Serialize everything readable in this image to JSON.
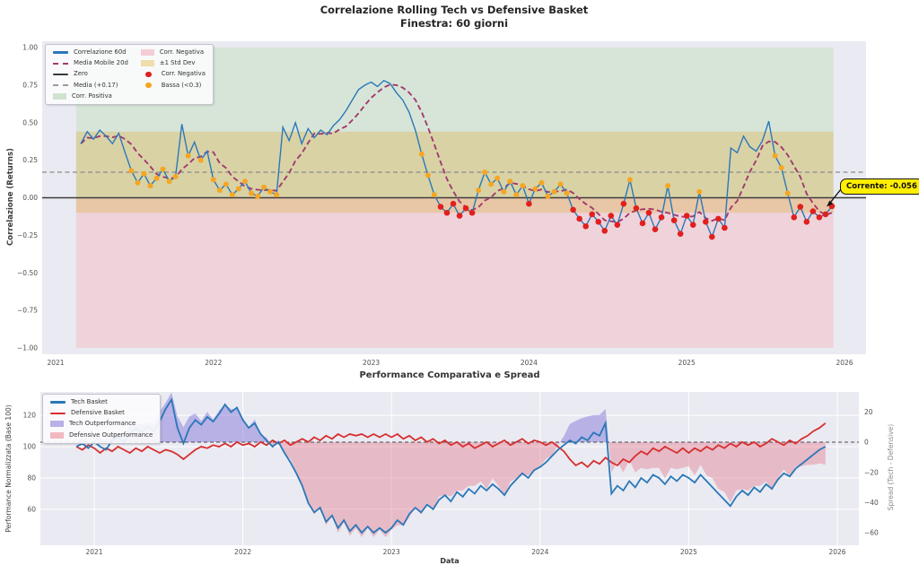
{
  "figure": {
    "bg": "#ffffff",
    "plot_bg": "#eaeaf2"
  },
  "annotation": {
    "label": "Corrente: -0.056",
    "bg": "#ffee00"
  },
  "chart_data": [
    {
      "type": "line",
      "title": "Correlazione Rolling Tech vs Defensive Basket",
      "subtitle": "Finestra: 60 giorni",
      "ylabel": "Correlazione (Returns)",
      "xlabel": "",
      "xtick_labels": [
        "2021",
        "2022",
        "2023",
        "2024",
        "2025",
        "2026"
      ],
      "xtick_values": [
        2021,
        2022,
        2023,
        2024,
        2025,
        2026
      ],
      "ytick_labels": [
        "1.00",
        "0.75",
        "0.50",
        "0.25",
        "0.00",
        "−0.25",
        "−0.50",
        "−0.75",
        "−1.00"
      ],
      "ytick_values": [
        1.0,
        0.75,
        0.5,
        0.25,
        0.0,
        -0.25,
        -0.5,
        -0.75,
        -1.0
      ],
      "ylim": [
        -1.04,
        1.04
      ],
      "grid": false,
      "legend_position": "upper-left",
      "zero_line": 0.0,
      "mean_line": 0.17,
      "std_band": [
        -0.1,
        0.44
      ],
      "low_threshold": 0.3,
      "band_x_range": [
        2021.13,
        2025.93
      ],
      "ma_window": 6,
      "series": {
        "t0": 2021.16,
        "dt": 0.04,
        "correlation_60d": [
          0.36,
          0.44,
          0.39,
          0.45,
          0.41,
          0.36,
          0.43,
          0.3,
          0.18,
          0.1,
          0.16,
          0.08,
          0.13,
          0.19,
          0.11,
          0.14,
          0.49,
          0.28,
          0.37,
          0.25,
          0.31,
          0.12,
          0.05,
          0.09,
          0.02,
          0.06,
          0.11,
          0.03,
          0.01,
          0.07,
          0.04,
          0.02,
          0.47,
          0.38,
          0.5,
          0.36,
          0.46,
          0.4,
          0.45,
          0.42,
          0.48,
          0.52,
          0.58,
          0.65,
          0.72,
          0.75,
          0.77,
          0.74,
          0.78,
          0.76,
          0.7,
          0.65,
          0.57,
          0.45,
          0.29,
          0.15,
          0.02,
          -0.06,
          -0.1,
          -0.04,
          -0.12,
          -0.07,
          -0.1,
          0.05,
          0.17,
          0.09,
          0.13,
          0.04,
          0.11,
          0.02,
          0.08,
          -0.04,
          0.06,
          0.1,
          0.01,
          0.04,
          0.09,
          0.03,
          -0.08,
          -0.14,
          -0.19,
          -0.11,
          -0.16,
          -0.22,
          -0.12,
          -0.18,
          -0.04,
          0.12,
          -0.07,
          -0.17,
          -0.1,
          -0.21,
          -0.13,
          0.08,
          -0.15,
          -0.24,
          -0.12,
          -0.18,
          0.04,
          -0.16,
          -0.26,
          -0.14,
          -0.2,
          0.33,
          0.3,
          0.41,
          0.34,
          0.31,
          0.38,
          0.51,
          0.28,
          0.2,
          0.03,
          -0.13,
          -0.06,
          -0.16,
          -0.09,
          -0.13,
          -0.11,
          -0.056
        ]
      },
      "current_value": -0.056,
      "legend_col1": [
        {
          "label": "Correlazione 60d",
          "swatch": "line",
          "color": "#2a78b8"
        },
        {
          "label": "Media Mobile 20d",
          "swatch": "dash",
          "color": "#a23b6e"
        },
        {
          "label": "Zero",
          "swatch": "line",
          "color": "#3a3a3a"
        },
        {
          "label": "Media (+0.17)",
          "swatch": "dash",
          "color": "#9a9a9a"
        },
        {
          "label": "Corr. Positiva",
          "swatch": "patch",
          "color": "#cfe3cf"
        }
      ],
      "legend_col2": [
        {
          "label": "Corr. Negativa",
          "swatch": "patch",
          "color": "#f4ccd6"
        },
        {
          "label": "±1 Std Dev",
          "swatch": "patch",
          "color": "#efddab"
        },
        {
          "label": "Corr. Negativa",
          "swatch": "dot",
          "color": "#e1201e"
        },
        {
          "label": "Bassa (<0.3)",
          "swatch": "dot",
          "color": "#f5a623"
        }
      ],
      "colors": {
        "line": "#2a78b8",
        "ma": "#a23b6e",
        "zero": "#3c3c3c",
        "mean": "#8a8a8a",
        "band_pos": "#d7e5d8",
        "band_neg": "#efd3da",
        "band_std": "rgba(222,178,82,0.38)",
        "dot_neg": "#e1201e",
        "dot_low": "#f5a623"
      }
    },
    {
      "type": "line",
      "title": "Performance Comparativa e Spread",
      "xlabel": "Data",
      "ylabel_left": "Performance Normalizzata (Base 100)",
      "ylabel_right": "Spread (Tech - Defensive)",
      "xtick_labels": [
        "2021",
        "2022",
        "2023",
        "2024",
        "2025",
        "2026"
      ],
      "xtick_values": [
        2021,
        2022,
        2023,
        2024,
        2025,
        2026
      ],
      "ytick_left_labels": [
        "120",
        "100",
        "80",
        "60"
      ],
      "ytick_left_values": [
        120,
        100,
        80,
        60
      ],
      "ytick_right_labels": [
        "20",
        "0",
        "−20",
        "−40",
        "−60"
      ],
      "ytick_right_values": [
        20,
        0,
        -20,
        -40,
        -60
      ],
      "grid": true,
      "spread_zero_line": 0,
      "series": {
        "t0": 2020.88,
        "dt": 0.04,
        "tech_basket": [
          100,
          102,
          99,
          103,
          100,
          98,
          104,
          106,
          103,
          108,
          112,
          109,
          113,
          110,
          116,
          124,
          130,
          112,
          102,
          112,
          117,
          114,
          119,
          116,
          121,
          127,
          122,
          125,
          117,
          112,
          115,
          108,
          104,
          100,
          103,
          96,
          90,
          83,
          75,
          64,
          58,
          61,
          52,
          56,
          48,
          53,
          46,
          50,
          45,
          49,
          45,
          48,
          45,
          48,
          53,
          50,
          57,
          61,
          58,
          63,
          60,
          66,
          69,
          65,
          71,
          68,
          73,
          70,
          75,
          72,
          76,
          73,
          69,
          75,
          79,
          83,
          80,
          85,
          87,
          90,
          94,
          98,
          101,
          104,
          102,
          106,
          104,
          109,
          107,
          115,
          70,
          75,
          72,
          78,
          74,
          80,
          77,
          82,
          80,
          76,
          81,
          78,
          82,
          80,
          77,
          82,
          78,
          74,
          70,
          66,
          62,
          68,
          72,
          69,
          74,
          71,
          76,
          73,
          79,
          83,
          81,
          86,
          89,
          92,
          95,
          98,
          100
        ],
        "defensive_basket": [
          100,
          98,
          101,
          99,
          96,
          99,
          97,
          100,
          98,
          96,
          99,
          97,
          100,
          98,
          96,
          98,
          97,
          95,
          92,
          95,
          98,
          100,
          99,
          101,
          100,
          102,
          100,
          103,
          101,
          102,
          100,
          103,
          101,
          104,
          102,
          104,
          101,
          103,
          105,
          103,
          106,
          104,
          107,
          105,
          108,
          106,
          108,
          107,
          108,
          106,
          108,
          106,
          108,
          106,
          108,
          105,
          107,
          104,
          106,
          103,
          105,
          102,
          104,
          101,
          103,
          100,
          102,
          99,
          101,
          103,
          100,
          102,
          104,
          101,
          103,
          105,
          102,
          104,
          103,
          101,
          103,
          100,
          97,
          92,
          88,
          90,
          87,
          91,
          89,
          93,
          90,
          88,
          92,
          90,
          94,
          97,
          95,
          99,
          97,
          100,
          98,
          96,
          99,
          96,
          99,
          97,
          100,
          98,
          101,
          99,
          102,
          100,
          103,
          101,
          103,
          100,
          102,
          105,
          103,
          101,
          104,
          102,
          105,
          107,
          110,
          112,
          115
        ]
      },
      "legend": [
        {
          "label": "Tech Basket",
          "swatch": "line",
          "color": "#2a78b8"
        },
        {
          "label": "Defensive Basket",
          "swatch": "line",
          "color": "#d62f2f"
        },
        {
          "label": "Tech Outperformance",
          "swatch": "patch",
          "color": "#b9b0e8"
        },
        {
          "label": "Defensive Outperformance",
          "swatch": "patch",
          "color": "#f2b8c2"
        }
      ],
      "colors": {
        "tech": "#2a78b8",
        "defensive": "#d62f2f",
        "fill_tech": "rgba(122,108,216,0.45)",
        "fill_def": "rgba(226,118,140,0.42)",
        "grid": "#ffffff",
        "zero_dash": "#4a4a4a"
      }
    }
  ]
}
